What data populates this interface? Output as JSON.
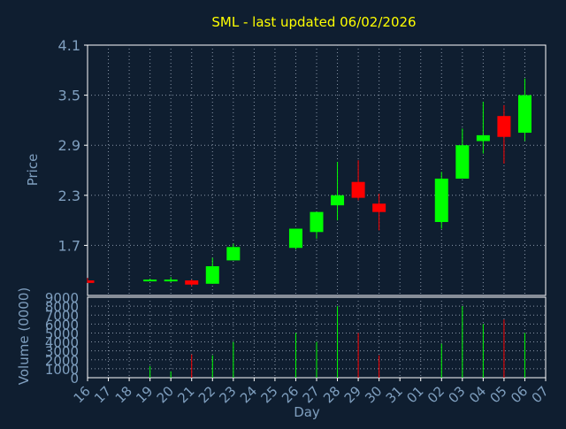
{
  "chart_data": [
    {
      "type": "candlestick",
      "title": "SML - last updated 06/02/2026",
      "ylabel": "Price",
      "ylim": [
        1.1,
        4.1
      ],
      "yticks": [
        "4.1",
        "3.5",
        "2.9",
        "2.3",
        "1.7"
      ],
      "grid": true,
      "x": [
        "16",
        "17",
        "18",
        "19",
        "20",
        "21",
        "22",
        "23",
        "24",
        "25",
        "26",
        "27",
        "28",
        "29",
        "30",
        "31",
        "01",
        "02",
        "03",
        "04",
        "05",
        "06",
        "07"
      ],
      "candles": [
        {
          "x": "16",
          "open": 1.28,
          "high": 1.31,
          "low": 1.25,
          "close": 1.25
        },
        {
          "x": "19",
          "open": 1.28,
          "high": 1.3,
          "low": 1.27,
          "close": 1.29
        },
        {
          "x": "20",
          "open": 1.28,
          "high": 1.32,
          "low": 1.26,
          "close": 1.29
        },
        {
          "x": "21",
          "open": 1.28,
          "high": 1.29,
          "low": 1.21,
          "close": 1.23
        },
        {
          "x": "22",
          "open": 1.24,
          "high": 1.55,
          "low": 1.24,
          "close": 1.45
        },
        {
          "x": "23",
          "open": 1.52,
          "high": 1.72,
          "low": 1.52,
          "close": 1.68
        },
        {
          "x": "26",
          "open": 1.67,
          "high": 1.9,
          "low": 1.65,
          "close": 1.9
        },
        {
          "x": "27",
          "open": 1.86,
          "high": 2.1,
          "low": 1.78,
          "close": 2.1
        },
        {
          "x": "28",
          "open": 2.18,
          "high": 2.7,
          "low": 2.0,
          "close": 2.3
        },
        {
          "x": "29",
          "open": 2.46,
          "high": 2.72,
          "low": 2.24,
          "close": 2.27
        },
        {
          "x": "30",
          "open": 2.2,
          "high": 2.32,
          "low": 1.88,
          "close": 2.1
        },
        {
          "x": "02",
          "open": 1.98,
          "high": 2.58,
          "low": 1.9,
          "close": 2.5
        },
        {
          "x": "03",
          "open": 2.5,
          "high": 3.1,
          "low": 2.5,
          "close": 2.9
        },
        {
          "x": "04",
          "open": 2.95,
          "high": 3.42,
          "low": 2.8,
          "close": 3.02
        },
        {
          "x": "05",
          "open": 3.25,
          "high": 3.38,
          "low": 2.68,
          "close": 3.0
        },
        {
          "x": "06",
          "open": 3.05,
          "high": 3.7,
          "low": 2.95,
          "close": 3.5
        }
      ]
    },
    {
      "type": "bar",
      "ylabel": "Volume (0000)",
      "xlabel": "Day",
      "ylim": [
        0,
        9000
      ],
      "yticks": [
        "9000",
        "8000",
        "7000",
        "6000",
        "5000",
        "4000",
        "3000",
        "2000",
        "1000",
        "0"
      ],
      "grid": true,
      "categories": [
        "16",
        "17",
        "18",
        "19",
        "20",
        "21",
        "22",
        "23",
        "24",
        "25",
        "26",
        "27",
        "28",
        "29",
        "30",
        "31",
        "01",
        "02",
        "03",
        "04",
        "05",
        "06",
        "07"
      ],
      "values": [
        0,
        0,
        0,
        1300,
        700,
        2600,
        2500,
        4000,
        0,
        0,
        5000,
        4000,
        8000,
        5000,
        2500,
        0,
        0,
        3800,
        8000,
        6000,
        6500,
        5000,
        0
      ],
      "direction": [
        "down",
        "",
        "",
        "up",
        "up",
        "down",
        "up",
        "up",
        "",
        "",
        "up",
        "up",
        "up",
        "down",
        "down",
        "",
        "",
        "up",
        "up",
        "up",
        "down",
        "up",
        ""
      ]
    }
  ],
  "colors": {
    "background": "#0f1e30",
    "plot_background": "#0f1e30",
    "axis": "#ffffff",
    "grid": "#8a96a8",
    "title": "#ffff00",
    "labels": "#7f9fbf",
    "up": "#00ff00",
    "down": "#ff0000"
  }
}
